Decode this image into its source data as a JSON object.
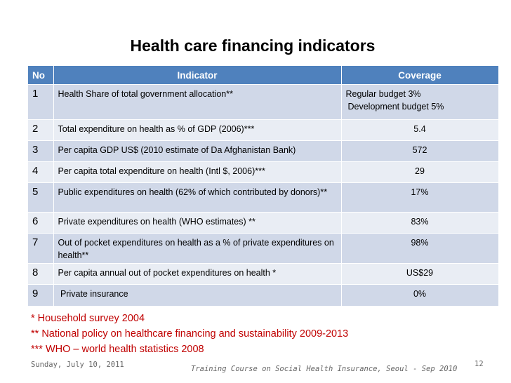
{
  "title": "Health care financing indicators",
  "table": {
    "headers": {
      "no": "No",
      "indicator": "Indicator",
      "coverage": "Coverage"
    },
    "rows": [
      {
        "no": "1",
        "indicator": "Health Share of total government allocation**",
        "coverage": [
          "Regular budget 3%",
          "Development budget 5%"
        ]
      },
      {
        "no": "2",
        "indicator": "Total expenditure on health as % of GDP (2006)***",
        "coverage": [
          "5.4"
        ]
      },
      {
        "no": "3",
        "indicator": "Per capita GDP US$ (2010 estimate of Da Afghanistan Bank)",
        "coverage": [
          "572"
        ]
      },
      {
        "no": "4",
        "indicator": "Per capita total expenditure on health (Intl $, 2006)***",
        "coverage": [
          "29"
        ]
      },
      {
        "no": "5",
        "indicator": "Public expenditures on health (62% of which contributed by donors)**",
        "coverage": [
          "17%"
        ]
      },
      {
        "no": "6",
        "indicator": "Private expenditures on health (WHO estimates) **",
        "coverage": [
          "83%"
        ]
      },
      {
        "no": "7",
        "indicator": "Out of pocket expenditures on health as a % of private expenditures on health**",
        "coverage": [
          "98%"
        ]
      },
      {
        "no": "8",
        "indicator": "Per capita annual out of pocket expenditures on health *",
        "coverage": [
          "US$29"
        ]
      },
      {
        "no": "9",
        "indicator": " Private insurance",
        "coverage": [
          "0%"
        ]
      }
    ]
  },
  "notes": [
    "* Household survey 2004",
    "** National policy on healthcare financing and sustainability 2009-2013",
    "*** WHO – world health statistics 2008"
  ],
  "footer": {
    "date": "Sunday, July 10, 2011",
    "course": "Training Course on Social Health Insurance, Seoul - Sep 2010",
    "page": "12"
  },
  "colors": {
    "header_bg": "#4f81bd",
    "row_odd": "#d0d8e8",
    "row_even": "#e9edf4",
    "notes": "#c00000"
  }
}
